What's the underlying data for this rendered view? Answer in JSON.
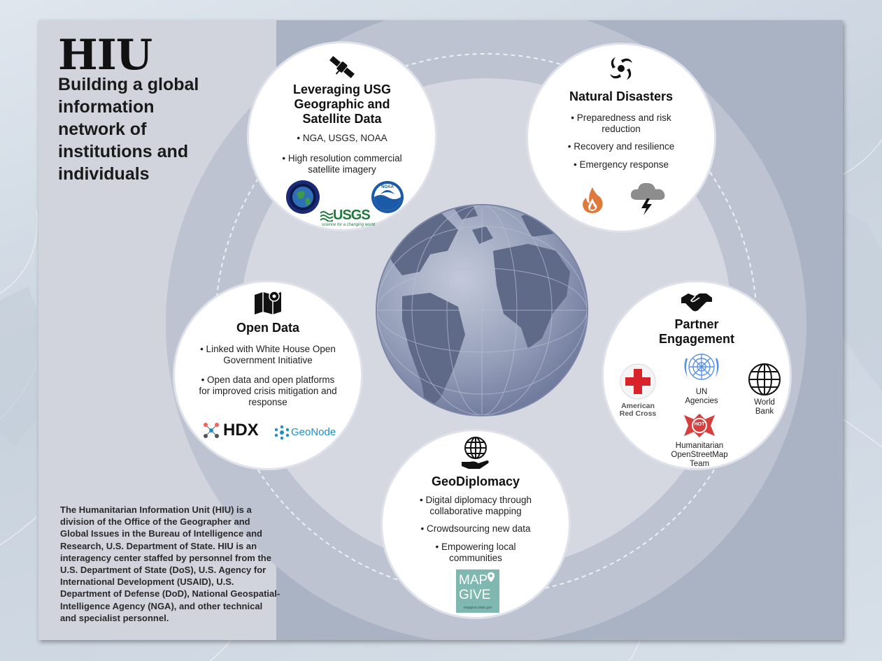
{
  "header": {
    "title": "HIU",
    "subtitle": "Building a global\ninformation\nnetwork of\ninstitutions and\nindividuals"
  },
  "description": "The Humanitarian Information Unit (HIU) is a division of the Office of the Geographer and Global Issues in the Bureau of Intelligence and Research, U.S. Department of State. HIU is an interagency center staffed by personnel from the U.S. Department of State (DoS), U.S. Agency for International Development (USAID), U.S. Department of Defense (DoD), National Geospatial-Intelligence Agency (NGA), and other technical and specialist personnel.",
  "nodes": {
    "satellite": {
      "title": "Leveraging USG\nGeographic and\nSatellite Data",
      "bullets": [
        "• NGA, USGS, NOAA",
        "• High resolution commercial\nsatellite imagery"
      ],
      "logos": {
        "usgs": "USGS",
        "usgs_tagline": "science for a changing world",
        "noaa": "NOAA"
      }
    },
    "disasters": {
      "title": "Natural Disasters",
      "bullets": [
        "• Preparedness and risk\nreduction",
        "• Recovery and resilience",
        "• Emergency response"
      ]
    },
    "open_data": {
      "title": "Open Data",
      "bullets": [
        "• Linked with White House Open\nGovernment Initiative",
        "• Open data and open platforms\nfor improved crisis mitigation and\nresponse"
      ],
      "logos": {
        "hdx": "HDX",
        "geonode": "GeoNode"
      }
    },
    "partners": {
      "title": "Partner\nEngagement",
      "red_cross": "American\nRed Cross",
      "un": "UN\nAgencies",
      "world_bank": "World\nBank",
      "hot_badge": "HOT",
      "hot": "Humanitarian\nOpenStreetMap\nTeam"
    },
    "geodiplomacy": {
      "title": "GeoDiplomacy",
      "bullets": [
        "• Digital diplomacy through\ncollaborative mapping",
        "• Crowdsourcing new data",
        "• Empowering local\ncommunities"
      ],
      "mapgive": {
        "line1": "MAP",
        "line2": "GIVE",
        "url": "mapgive.state.gov"
      }
    }
  },
  "colors": {
    "panel": "#aab3c4",
    "left_column": "#d2d4dd",
    "inner_disc": "#d6d8e1",
    "ring": "#bdc3d1",
    "globe_ocean": "#8a95b2",
    "globe_land": "#5f6a88",
    "fire": "#e07a3c",
    "red_cross": "#d8232a",
    "un_blue": "#5b92e5",
    "hot_red": "#d73f3f",
    "mapgive_teal": "#7fb8b0",
    "geonode_blue": "#1f8fc8"
  },
  "icons": [
    "satellite-icon",
    "hurricane-icon",
    "fire-icon",
    "storm-cloud-icon",
    "map-pin-icon",
    "handshake-icon",
    "globe-hand-icon",
    "globe-grid-icon"
  ]
}
